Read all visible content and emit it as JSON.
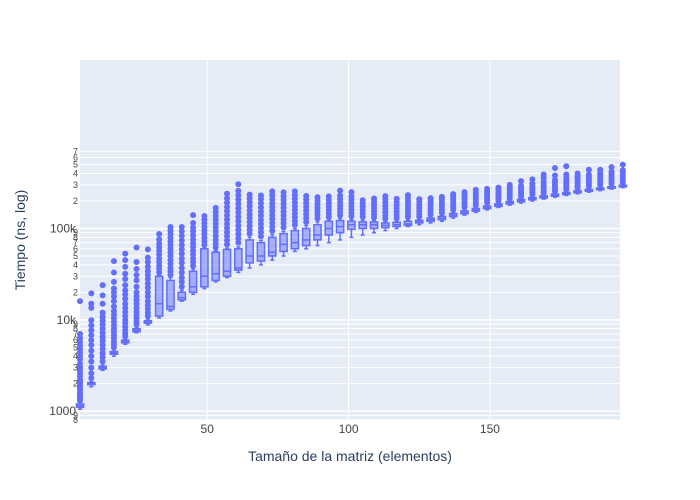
{
  "chart_data": {
    "type": "box",
    "title": "",
    "xlabel": "Tamaño de la matriz (elementos)",
    "ylabel": "Tiempo (ns, log)",
    "x_scale": "linear",
    "y_scale": "log",
    "xlim": [
      5,
      196
    ],
    "ylim": [
      800,
      7000000
    ],
    "x_ticks": [
      {
        "value": 50,
        "label": "50"
      },
      {
        "value": 100,
        "label": "100"
      },
      {
        "value": 150,
        "label": "150"
      }
    ],
    "y_major_ticks": [
      {
        "value": 1000,
        "label": "1000"
      },
      {
        "value": 10000,
        "label": "10k"
      },
      {
        "value": 100000,
        "label": "100k"
      }
    ],
    "y_minor_ticks": [
      {
        "value": 800,
        "label": "8"
      },
      {
        "value": 900,
        "label": "9"
      },
      {
        "value": 2000,
        "label": "2"
      },
      {
        "value": 3000,
        "label": "3"
      },
      {
        "value": 4000,
        "label": "4"
      },
      {
        "value": 5000,
        "label": "5"
      },
      {
        "value": 6000,
        "label": "6"
      },
      {
        "value": 7000,
        "label": "7"
      },
      {
        "value": 8000,
        "label": "8"
      },
      {
        "value": 9000,
        "label": "9"
      },
      {
        "value": 20000,
        "label": "2"
      },
      {
        "value": 30000,
        "label": "3"
      },
      {
        "value": 40000,
        "label": "4"
      },
      {
        "value": 50000,
        "label": "5"
      },
      {
        "value": 60000,
        "label": "6"
      },
      {
        "value": 70000,
        "label": "7"
      },
      {
        "value": 80000,
        "label": "8"
      },
      {
        "value": 90000,
        "label": "9"
      },
      {
        "value": 200000,
        "label": "2"
      },
      {
        "value": 300000,
        "label": "3"
      },
      {
        "value": 400000,
        "label": "4"
      },
      {
        "value": 500000,
        "label": "5"
      },
      {
        "value": 600000,
        "label": "6"
      },
      {
        "value": 700000,
        "label": "7"
      }
    ],
    "grid": true,
    "legend": "none",
    "colors": {
      "box": "#636efa",
      "box_fill": "rgba(99,110,250,0.5)",
      "plot_bg": "#e5ecf6",
      "grid": "#ffffff"
    },
    "boxes": [
      {
        "x": 5,
        "min": 1050,
        "q1": 1100,
        "median": 1150,
        "q3": 1200,
        "max": 1250,
        "outliers": [
          1300,
          1350,
          1400,
          1450,
          1500,
          1550,
          1600,
          1700,
          1800,
          1900,
          2000,
          2100,
          2200,
          2400,
          2600,
          2800,
          3000,
          3300,
          3700,
          4000,
          4400,
          4800,
          5200,
          5700,
          6300,
          7000,
          16000
        ]
      },
      {
        "x": 9,
        "min": 1850,
        "q1": 1950,
        "median": 2000,
        "q3": 2050,
        "max": 2100,
        "outliers": [
          2300,
          2600,
          3000,
          3500,
          4000,
          4600,
          5300,
          6000,
          6800,
          7700,
          8700,
          9900,
          13500,
          15000,
          19500
        ]
      },
      {
        "x": 13,
        "min": 2800,
        "q1": 2900,
        "median": 3000,
        "q3": 3100,
        "max": 3200,
        "outliers": [
          3500,
          3900,
          4300,
          4800,
          5300,
          5900,
          6500,
          7200,
          8000,
          8900,
          9800,
          10800,
          12000,
          15000,
          18500,
          24000
        ]
      },
      {
        "x": 17,
        "min": 4000,
        "q1": 4200,
        "median": 4350,
        "q3": 4500,
        "max": 4700,
        "outliers": [
          5000,
          5400,
          5800,
          6300,
          6800,
          7400,
          8000,
          8700,
          9500,
          10400,
          11400,
          12500,
          14000,
          16000,
          18000,
          20000,
          22000,
          26000,
          33000,
          44000
        ]
      },
      {
        "x": 21,
        "min": 5400,
        "q1": 5600,
        "median": 5800,
        "q3": 6000,
        "max": 6200,
        "outliers": [
          6600,
          7100,
          7700,
          8400,
          9200,
          10000,
          11000,
          12200,
          13500,
          15000,
          17000,
          19000,
          21000,
          24000,
          28000,
          32000,
          38000,
          45000,
          53000
        ]
      },
      {
        "x": 25,
        "min": 7200,
        "q1": 7400,
        "median": 7700,
        "q3": 8000,
        "max": 8300,
        "outliers": [
          8900,
          9600,
          10400,
          11300,
          12300,
          13500,
          15000,
          16500,
          18000,
          20000,
          23000,
          27000,
          31000,
          36000,
          43000,
          62000
        ]
      },
      {
        "x": 29,
        "min": 8800,
        "q1": 9200,
        "median": 9500,
        "q3": 9800,
        "max": 10200,
        "outliers": [
          11000,
          12000,
          13200,
          14500,
          16000,
          18000,
          20000,
          22500,
          25000,
          28000,
          31000,
          34000,
          38000,
          43000,
          48000,
          59000
        ]
      },
      {
        "x": 33,
        "min": 10500,
        "q1": 11000,
        "median": 15000,
        "q3": 30000,
        "max": 31000,
        "outliers": [
          33000,
          36000,
          39000,
          43000,
          47000,
          52000,
          57000,
          62000,
          68000,
          76000,
          87000
        ]
      },
      {
        "x": 37,
        "min": 12500,
        "q1": 13000,
        "median": 14000,
        "q3": 27000,
        "max": 29000,
        "outliers": [
          31000,
          34000,
          37000,
          41000,
          45000,
          50000,
          55000,
          60000,
          66000,
          72000,
          79000,
          87000,
          95000,
          104000
        ]
      },
      {
        "x": 41,
        "min": 16000,
        "q1": 16500,
        "median": 17500,
        "q3": 20000,
        "max": 21000,
        "outliers": [
          23000,
          26000,
          29000,
          33000,
          37000,
          42000,
          47000,
          53000,
          59000,
          66000,
          74000,
          83000,
          93000,
          104000
        ]
      },
      {
        "x": 45,
        "min": 19000,
        "q1": 20000,
        "median": 23000,
        "q3": 34000,
        "max": 36000,
        "outliers": [
          39000,
          43000,
          47000,
          52000,
          57000,
          63000,
          69000,
          76000,
          84000,
          93000,
          102000,
          115000,
          140000
        ]
      },
      {
        "x": 49,
        "min": 22000,
        "q1": 23000,
        "median": 30000,
        "q3": 60000,
        "max": 62000,
        "outliers": [
          66000,
          72000,
          79000,
          87000,
          95000,
          104000,
          114000,
          125000,
          137000
        ]
      },
      {
        "x": 53,
        "min": 26000,
        "q1": 27000,
        "median": 32000,
        "q3": 55000,
        "max": 57000,
        "outliers": [
          62000,
          68000,
          75000,
          83000,
          92000,
          102000,
          113000,
          125000,
          138000,
          152000,
          168000
        ]
      },
      {
        "x": 57,
        "min": 29000,
        "q1": 30000,
        "median": 34000,
        "q3": 59000,
        "max": 61000,
        "outliers": [
          67000,
          74000,
          82000,
          91000,
          101000,
          112000,
          125000,
          139000,
          155000,
          172000,
          192000,
          214000,
          240000
        ]
      },
      {
        "x": 61,
        "min": 33000,
        "q1": 35000,
        "median": 37000,
        "q3": 60000,
        "max": 63000,
        "outliers": [
          70000,
          78000,
          87000,
          97000,
          108000,
          120000,
          134000,
          150000,
          167000,
          186000,
          207000,
          231000,
          258000,
          305000
        ]
      },
      {
        "x": 65,
        "min": 37000,
        "q1": 42000,
        "median": 50000,
        "q3": 75000,
        "max": 80000,
        "outliers": [
          88000,
          97000,
          107000,
          118000,
          130000,
          143000,
          158000,
          175000,
          193000,
          213000,
          235000
        ]
      },
      {
        "x": 69,
        "min": 40000,
        "q1": 44000,
        "median": 50000,
        "q3": 70000,
        "max": 74000,
        "outliers": [
          82000,
          91000,
          101000,
          112000,
          124000,
          138000,
          153000,
          170000,
          189000,
          210000,
          230000
        ]
      },
      {
        "x": 73,
        "min": 45000,
        "q1": 50000,
        "median": 55000,
        "q3": 80000,
        "max": 85000,
        "outliers": [
          94000,
          104000,
          115000,
          127000,
          140000,
          155000,
          171000,
          189000,
          209000,
          231000,
          255000
        ]
      },
      {
        "x": 77,
        "min": 50000,
        "q1": 56000,
        "median": 67000,
        "q3": 88000,
        "max": 93000,
        "outliers": [
          103000,
          114000,
          126000,
          139000,
          153000,
          169000,
          186000,
          205000,
          226000,
          249000
        ]
      },
      {
        "x": 81,
        "min": 56000,
        "q1": 60000,
        "median": 70000,
        "q3": 95000,
        "max": 100000,
        "outliers": [
          110000,
          121000,
          133000,
          146000,
          160000,
          176000,
          193000,
          212000,
          233000,
          255000
        ]
      },
      {
        "x": 85,
        "min": 60000,
        "q1": 65000,
        "median": 75000,
        "q3": 100000,
        "max": 108000,
        "outliers": [
          118000,
          130000,
          143000,
          157000,
          172000,
          189000,
          207000,
          227000
        ]
      },
      {
        "x": 89,
        "min": 65000,
        "q1": 75000,
        "median": 85000,
        "q3": 110000,
        "max": 118000,
        "outliers": [
          129000,
          141000,
          154000,
          168000,
          184000,
          201000,
          220000
        ]
      },
      {
        "x": 93,
        "min": 70000,
        "q1": 85000,
        "median": 100000,
        "q3": 120000,
        "max": 125000,
        "outliers": [
          134000,
          146000,
          159000,
          173000,
          189000,
          206000,
          225000
        ]
      },
      {
        "x": 97,
        "min": 75000,
        "q1": 90000,
        "median": 105000,
        "q3": 122000,
        "max": 128000,
        "outliers": [
          139000,
          151000,
          164000,
          178000,
          194000,
          211000,
          230000,
          260000
        ]
      },
      {
        "x": 101,
        "min": 80000,
        "q1": 98000,
        "median": 110000,
        "q3": 120000,
        "max": 125000,
        "outliers": [
          136000,
          148000,
          161000,
          175000,
          190000,
          207000,
          225000,
          250000
        ]
      },
      {
        "x": 105,
        "min": 85000,
        "q1": 100000,
        "median": 110000,
        "q3": 118000,
        "max": 123000,
        "outliers": [
          134000,
          146000,
          159000,
          173000,
          188000,
          204000
        ]
      },
      {
        "x": 109,
        "min": 90000,
        "q1": 100000,
        "median": 110000,
        "q3": 118000,
        "max": 122000,
        "outliers": [
          132000,
          143000,
          155000,
          168000,
          182000,
          197000,
          213000
        ]
      },
      {
        "x": 113,
        "min": 95000,
        "q1": 102000,
        "median": 108000,
        "q3": 115000,
        "max": 118000,
        "outliers": [
          128000,
          139000,
          151000,
          164000,
          178000,
          193000,
          209000,
          226000
        ]
      },
      {
        "x": 117,
        "min": 100000,
        "q1": 105000,
        "median": 110000,
        "q3": 117000,
        "max": 120000,
        "outliers": [
          130000,
          141000,
          153000,
          166000,
          180000,
          195000,
          211000
        ]
      },
      {
        "x": 121,
        "min": 105000,
        "q1": 108000,
        "median": 112000,
        "q3": 120000,
        "max": 124000,
        "outliers": [
          134000,
          145000,
          157000,
          170000,
          184000,
          199000,
          215000,
          232000
        ]
      },
      {
        "x": 125,
        "min": 110000,
        "q1": 115000,
        "median": 118000,
        "q3": 123000,
        "max": 126000,
        "outliers": [
          135000,
          145000,
          156000,
          168000,
          181000,
          195000,
          210000
        ]
      },
      {
        "x": 129,
        "min": 115000,
        "q1": 120000,
        "median": 125000,
        "q3": 130000,
        "max": 133000,
        "outliers": [
          142000,
          152000,
          163000,
          175000,
          188000,
          202000,
          215000
        ]
      },
      {
        "x": 133,
        "min": 120000,
        "q1": 125000,
        "median": 130000,
        "q3": 136000,
        "max": 140000,
        "outliers": [
          149000,
          159000,
          170000,
          182000,
          195000,
          209000,
          222000
        ]
      },
      {
        "x": 137,
        "min": 130000,
        "q1": 135000,
        "median": 140000,
        "q3": 146000,
        "max": 150000,
        "outliers": [
          160000,
          171000,
          183000,
          196000,
          210000,
          225000,
          238000
        ]
      },
      {
        "x": 141,
        "min": 140000,
        "q1": 145000,
        "median": 150000,
        "q3": 156000,
        "max": 160000,
        "outliers": [
          170000,
          181000,
          193000,
          206000,
          220000,
          235000,
          250000
        ]
      },
      {
        "x": 145,
        "min": 150000,
        "q1": 155000,
        "median": 160000,
        "q3": 166000,
        "max": 170000,
        "outliers": [
          180000,
          191000,
          203000,
          216000,
          230000,
          245000,
          265000
        ]
      },
      {
        "x": 149,
        "min": 160000,
        "q1": 165000,
        "median": 170000,
        "q3": 176000,
        "max": 180000,
        "outliers": [
          190000,
          201000,
          213000,
          226000,
          240000,
          255000,
          272000
        ]
      },
      {
        "x": 153,
        "min": 170000,
        "q1": 175000,
        "median": 180000,
        "q3": 186000,
        "max": 190000,
        "outliers": [
          200000,
          211000,
          223000,
          236000,
          250000,
          265000,
          280000
        ]
      },
      {
        "x": 157,
        "min": 180000,
        "q1": 186000,
        "median": 192000,
        "q3": 198000,
        "max": 202000,
        "outliers": [
          213000,
          225000,
          238000,
          252000,
          267000,
          283000,
          300000
        ]
      },
      {
        "x": 161,
        "min": 190000,
        "q1": 196000,
        "median": 202000,
        "q3": 208000,
        "max": 212000,
        "outliers": [
          223000,
          235000,
          248000,
          262000,
          277000,
          293000,
          330000
        ]
      },
      {
        "x": 165,
        "min": 200000,
        "q1": 206000,
        "median": 212000,
        "q3": 218000,
        "max": 222000,
        "outliers": [
          234000,
          247000,
          261000,
          276000,
          292000,
          310000,
          345000
        ]
      },
      {
        "x": 169,
        "min": 210000,
        "q1": 216000,
        "median": 222000,
        "q3": 228000,
        "max": 232000,
        "outliers": [
          245000,
          259000,
          274000,
          290000,
          307000,
          325000,
          360000,
          390000
        ]
      },
      {
        "x": 173,
        "min": 220000,
        "q1": 226000,
        "median": 232000,
        "q3": 238000,
        "max": 242000,
        "outliers": [
          256000,
          271000,
          287000,
          304000,
          322000,
          341000,
          380000,
          460000
        ]
      },
      {
        "x": 177,
        "min": 230000,
        "q1": 236000,
        "median": 242000,
        "q3": 248000,
        "max": 252000,
        "outliers": [
          267000,
          283000,
          300000,
          318000,
          337000,
          357000,
          390000,
          480000
        ]
      },
      {
        "x": 181,
        "min": 240000,
        "q1": 246000,
        "median": 252000,
        "q3": 258000,
        "max": 262000,
        "outliers": [
          278000,
          295000,
          313000,
          332000,
          352000,
          373000,
          400000
        ]
      },
      {
        "x": 185,
        "min": 250000,
        "q1": 256000,
        "median": 262000,
        "q3": 268000,
        "max": 272000,
        "outliers": [
          289000,
          307000,
          326000,
          346000,
          367000,
          389000,
          440000
        ]
      },
      {
        "x": 189,
        "min": 260000,
        "q1": 266000,
        "median": 272000,
        "q3": 278000,
        "max": 282000,
        "outliers": [
          300000,
          319000,
          339000,
          360000,
          382000,
          405000,
          440000
        ]
      },
      {
        "x": 193,
        "min": 270000,
        "q1": 276000,
        "median": 282000,
        "q3": 288000,
        "max": 292000,
        "outliers": [
          310000,
          330000,
          351000,
          373000,
          396000,
          420000,
          470000
        ]
      },
      {
        "x": 197,
        "min": 280000,
        "q1": 286000,
        "median": 292000,
        "q3": 298000,
        "max": 302000,
        "outliers": [
          320000,
          341000,
          363000,
          386000,
          410000,
          435000,
          500000
        ]
      }
    ]
  }
}
